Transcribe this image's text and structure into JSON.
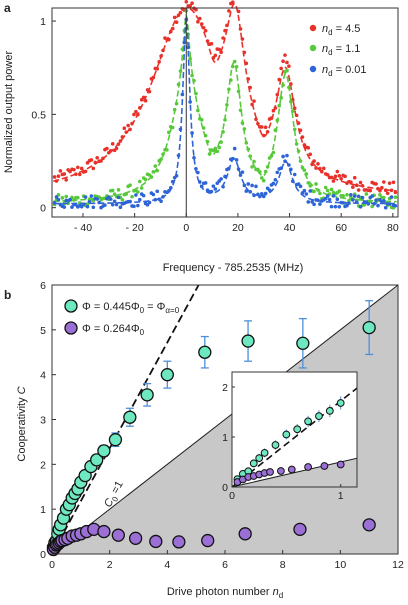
{
  "panels": [
    {
      "letter": "a"
    },
    {
      "letter": "b"
    }
  ],
  "chart_data": [
    {
      "type": "scatter",
      "panel": "a",
      "xlabel": "Frequency - 785.2535  (MHz)",
      "ylabel": "Normalized output power",
      "xlim": [
        -52,
        82
      ],
      "ylim": [
        -0.05,
        1.07
      ],
      "xticks": [
        -40,
        -20,
        0,
        20,
        40,
        60,
        80
      ],
      "xtick_labels": [
        "- 40",
        "- 20",
        "0",
        "20",
        "40",
        "60",
        "80"
      ],
      "yticks": [
        0,
        0.5,
        1
      ],
      "ytick_labels": [
        "0",
        "0.5",
        "1"
      ],
      "legend_position": "top-right",
      "series": [
        {
          "name_parts": [
            "n",
            "d",
            " = 4.5"
          ],
          "color": "#e8312a",
          "fit": {
            "baseline": 0.04,
            "peaks": [
              [
                0,
                1.0,
                17
              ],
              [
                19,
                0.6,
                4.5
              ],
              [
                38.5,
                0.53,
                4.5
              ]
            ],
            "dips": [
              [
                11,
                0.12,
                3
              ],
              [
                30,
                0.1,
                3
              ]
            ]
          },
          "points_model": {
            "baseline": 0.05,
            "peaks": [
              [
                0,
                1.0,
                17
              ],
              [
                19,
                0.62,
                4.5
              ],
              [
                38.5,
                0.55,
                4.5
              ]
            ],
            "dips": [
              [
                11,
                0.1,
                3
              ],
              [
                30,
                0.1,
                3
              ]
            ]
          }
        },
        {
          "name_parts": [
            "n",
            "d",
            " = 1.1"
          ],
          "color": "#57c93a",
          "fit": {
            "baseline": 0.02,
            "peaks": [
              [
                0,
                0.62,
                7
              ],
              [
                0,
                0.36,
                1.5
              ],
              [
                18.5,
                0.66,
                3.6
              ],
              [
                38.5,
                0.66,
                3.8
              ]
            ],
            "dips": [
              [
                10,
                0.06,
                2
              ],
              [
                30,
                0.05,
                2
              ]
            ]
          },
          "points_model": {
            "baseline": 0.02,
            "peaks": [
              [
                0,
                0.62,
                7
              ],
              [
                0,
                0.36,
                1.5
              ],
              [
                18.5,
                0.66,
                3.6
              ],
              [
                38.5,
                0.66,
                3.8
              ]
            ],
            "dips": [
              [
                10,
                0.06,
                2
              ],
              [
                30,
                0.05,
                2
              ]
            ]
          }
        },
        {
          "name_parts": [
            "n",
            "d",
            " = 0.01"
          ],
          "color": "#2e64d8",
          "fit": {
            "baseline": 0.02,
            "peaks": [
              [
                0,
                0.98,
                1.7
              ],
              [
                18.5,
                0.23,
                3.2
              ],
              [
                38.5,
                0.22,
                3.2
              ]
            ],
            "dips": []
          },
          "points_model": {
            "baseline": 0.03,
            "peaks": [
              [
                0,
                0.98,
                1.7
              ],
              [
                18.5,
                0.25,
                3.2
              ],
              [
                38.5,
                0.24,
                3.2
              ]
            ],
            "dips": []
          }
        }
      ]
    },
    {
      "type": "scatter",
      "panel": "b",
      "xlabel_parts": [
        "Drive photon number ",
        "n",
        "d"
      ],
      "ylabel_parts": [
        "Cooperativity  ",
        "C"
      ],
      "xlim": [
        0,
        12
      ],
      "ylim": [
        0,
        6
      ],
      "xticks": [
        0,
        2,
        4,
        6,
        8,
        10,
        12
      ],
      "yticks": [
        0,
        1,
        2,
        3,
        4,
        5,
        6
      ],
      "shaded_region": "below the line C = n_d / 2",
      "c0_line_label": "C",
      "c0_line_sub": "0",
      "c0_line_rest": " =1",
      "dashed_fit_slope": 1.18,
      "legend_position": "top-left",
      "series": [
        {
          "name": "Φ = 0.445Φ₀ = Φα=0",
          "label_main": "Φ = 0.445Φ",
          "label_sub0": "0",
          "label_mid": " = Φ",
          "label_sub1": "α=0",
          "color": "#6ee8c0",
          "x": [
            0.05,
            0.1,
            0.15,
            0.2,
            0.25,
            0.3,
            0.4,
            0.5,
            0.6,
            0.7,
            0.8,
            0.9,
            1.0,
            1.15,
            1.35,
            1.55,
            1.8,
            2.2,
            2.7,
            3.3,
            4.0,
            5.3,
            6.8,
            8.7,
            11.0
          ],
          "y": [
            0.15,
            0.25,
            0.3,
            0.45,
            0.55,
            0.65,
            0.8,
            1.0,
            1.1,
            1.25,
            1.35,
            1.45,
            1.6,
            1.75,
            1.95,
            2.1,
            2.3,
            2.55,
            3.05,
            3.55,
            4.0,
            4.5,
            4.75,
            4.7,
            5.05
          ],
          "err": [
            0.05,
            0.05,
            0.05,
            0.05,
            0.05,
            0.05,
            0.05,
            0.05,
            0.05,
            0.05,
            0.05,
            0.05,
            0.05,
            0.08,
            0.1,
            0.12,
            0.12,
            0.15,
            0.2,
            0.25,
            0.3,
            0.35,
            0.45,
            0.55,
            0.6
          ]
        },
        {
          "name": "Φ = 0.264Φ₀",
          "label_main": "Φ = 0.264Φ",
          "label_sub0": "0",
          "color": "#9b6fd6",
          "x": [
            0.05,
            0.1,
            0.15,
            0.2,
            0.25,
            0.3,
            0.35,
            0.45,
            0.55,
            0.7,
            0.85,
            1.0,
            1.2,
            1.45,
            1.8,
            2.3,
            2.9,
            3.6,
            4.4,
            5.4,
            6.7,
            8.6,
            11.0
          ],
          "y": [
            0.1,
            0.15,
            0.2,
            0.22,
            0.25,
            0.28,
            0.3,
            0.32,
            0.35,
            0.4,
            0.42,
            0.45,
            0.5,
            0.55,
            0.5,
            0.42,
            0.35,
            0.28,
            0.27,
            0.3,
            0.45,
            0.55,
            0.65
          ],
          "err": [
            0.03,
            0.03,
            0.03,
            0.03,
            0.03,
            0.03,
            0.03,
            0.03,
            0.03,
            0.03,
            0.04,
            0.04,
            0.04,
            0.04,
            0.04,
            0.05,
            0.05,
            0.05,
            0.05,
            0.05,
            0.05,
            0.05,
            0.05
          ]
        }
      ],
      "inset": {
        "xlim": [
          0,
          1.15
        ],
        "ylim": [
          0,
          2.3
        ],
        "xticks": [
          0,
          1
        ],
        "yticks": [
          0,
          1,
          2
        ],
        "dashed_fit_slope": 1.72,
        "boundary_slope": 0.5
      }
    }
  ]
}
